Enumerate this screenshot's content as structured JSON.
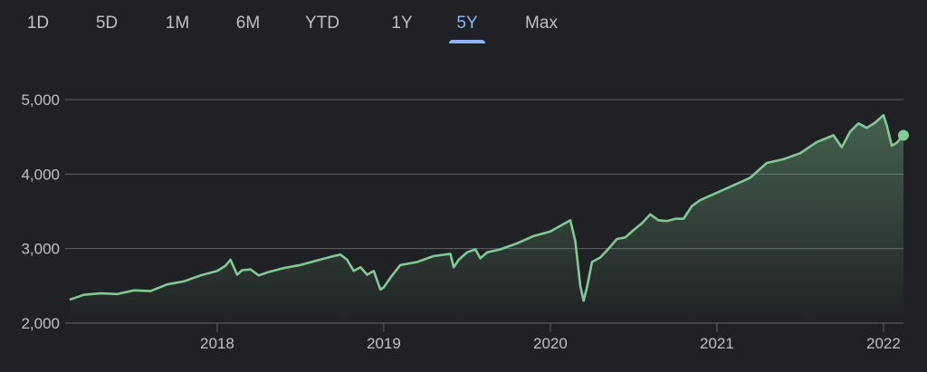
{
  "tabs": [
    {
      "label": "1D",
      "active": false
    },
    {
      "label": "5D",
      "active": false
    },
    {
      "label": "1M",
      "active": false
    },
    {
      "label": "6M",
      "active": false
    },
    {
      "label": "YTD",
      "active": false
    },
    {
      "label": "1Y",
      "active": false
    },
    {
      "label": "5Y",
      "active": true
    },
    {
      "label": "Max",
      "active": false
    }
  ],
  "colors": {
    "background": "#202124",
    "line": "#81c995",
    "active_tab": "#8ab4f8",
    "grid": "#5f6368"
  },
  "chart_data": {
    "type": "area",
    "title": "",
    "xlabel": "",
    "ylabel": "",
    "ylim": [
      2000,
      5000
    ],
    "y_ticks": [
      "2,000",
      "3,000",
      "4,000",
      "5,000"
    ],
    "x_ticks": [
      "2018",
      "2019",
      "2020",
      "2021",
      "2022"
    ],
    "x_tick_values": [
      2018,
      2019,
      2020,
      2021,
      2022
    ],
    "xlim": [
      2017.12,
      2022.12
    ],
    "grid": true,
    "series": [
      {
        "x": [
          2017.12,
          2017.2,
          2017.3,
          2017.4,
          2017.5,
          2017.6,
          2017.7,
          2017.8,
          2017.9,
          2018.0,
          2018.05,
          2018.08,
          2018.12,
          2018.15,
          2018.2,
          2018.25,
          2018.3,
          2018.4,
          2018.5,
          2018.6,
          2018.7,
          2018.74,
          2018.78,
          2018.82,
          2018.86,
          2018.9,
          2018.94,
          2018.98,
          2019.0,
          2019.05,
          2019.1,
          2019.2,
          2019.3,
          2019.4,
          2019.42,
          2019.45,
          2019.5,
          2019.55,
          2019.58,
          2019.62,
          2019.7,
          2019.8,
          2019.9,
          2020.0,
          2020.08,
          2020.12,
          2020.15,
          2020.18,
          2020.2,
          2020.22,
          2020.25,
          2020.3,
          2020.35,
          2020.4,
          2020.45,
          2020.5,
          2020.55,
          2020.6,
          2020.65,
          2020.7,
          2020.75,
          2020.8,
          2020.85,
          2020.9,
          2021.0,
          2021.1,
          2021.2,
          2021.3,
          2021.4,
          2021.5,
          2021.6,
          2021.7,
          2021.75,
          2021.8,
          2021.85,
          2021.9,
          2021.95,
          2022.0,
          2022.02,
          2022.05,
          2022.08,
          2022.12
        ],
        "y": [
          2320,
          2380,
          2400,
          2390,
          2440,
          2430,
          2520,
          2560,
          2640,
          2700,
          2770,
          2850,
          2650,
          2710,
          2720,
          2640,
          2680,
          2740,
          2780,
          2840,
          2900,
          2920,
          2850,
          2700,
          2750,
          2650,
          2700,
          2450,
          2480,
          2640,
          2780,
          2820,
          2900,
          2930,
          2750,
          2850,
          2950,
          2990,
          2870,
          2950,
          2990,
          3070,
          3170,
          3230,
          3330,
          3380,
          3100,
          2500,
          2300,
          2480,
          2820,
          2880,
          3000,
          3130,
          3150,
          3250,
          3340,
          3460,
          3380,
          3370,
          3400,
          3400,
          3570,
          3650,
          3750,
          3850,
          3950,
          4150,
          4200,
          4280,
          4430,
          4520,
          4360,
          4570,
          4680,
          4620,
          4690,
          4790,
          4650,
          4380,
          4420,
          4520
        ]
      }
    ]
  }
}
